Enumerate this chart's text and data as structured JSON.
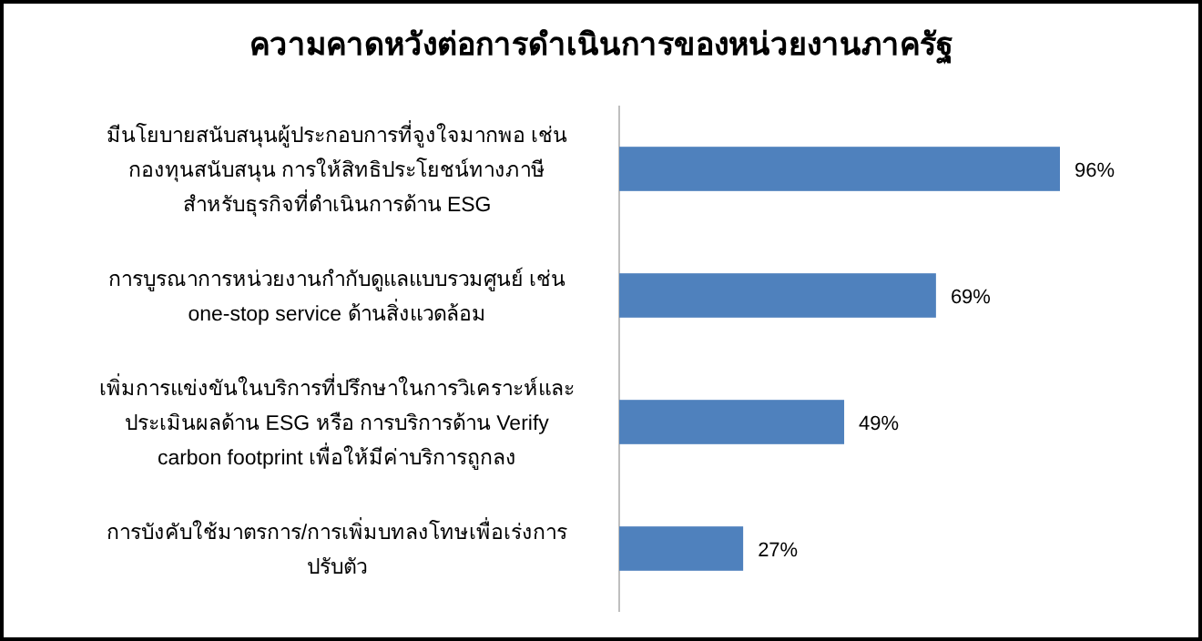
{
  "chart_data": {
    "type": "bar",
    "orientation": "horizontal",
    "title": "ความคาดหวังต่อการดำเนินการของหน่วยงานภาครัฐ",
    "categories": [
      "มีนโยบายสนับสนุนผู้ประกอบการที่จูงใจมากพอ เช่น กองทุนสนับสนุน การให้สิทธิประโยชน์ทางภาษีสำหรับธุรกิจที่ดำเนินการด้าน ESG",
      "การบูรณาการหน่วยงานกำกับดูแลแบบรวมศูนย์ เช่น one-stop service ด้านสิ่งแวดล้อม",
      "เพิ่มการแข่งขันในบริการที่ปรึกษาในการวิเคราะห์และประเมินผลด้าน ESG หรือ การบริการด้าน Verify carbon footprint เพื่อให้มีค่าบริการถูกลง",
      "การบังคับใช้มาตรการ/การเพิ่มบทลงโทษเพื่อเร่งการปรับตัว"
    ],
    "values": [
      96,
      69,
      49,
      27
    ],
    "value_labels": [
      "96%",
      "69%",
      "49%",
      "27%"
    ],
    "color": "#4f81bd",
    "tick_labels": "y"
  }
}
